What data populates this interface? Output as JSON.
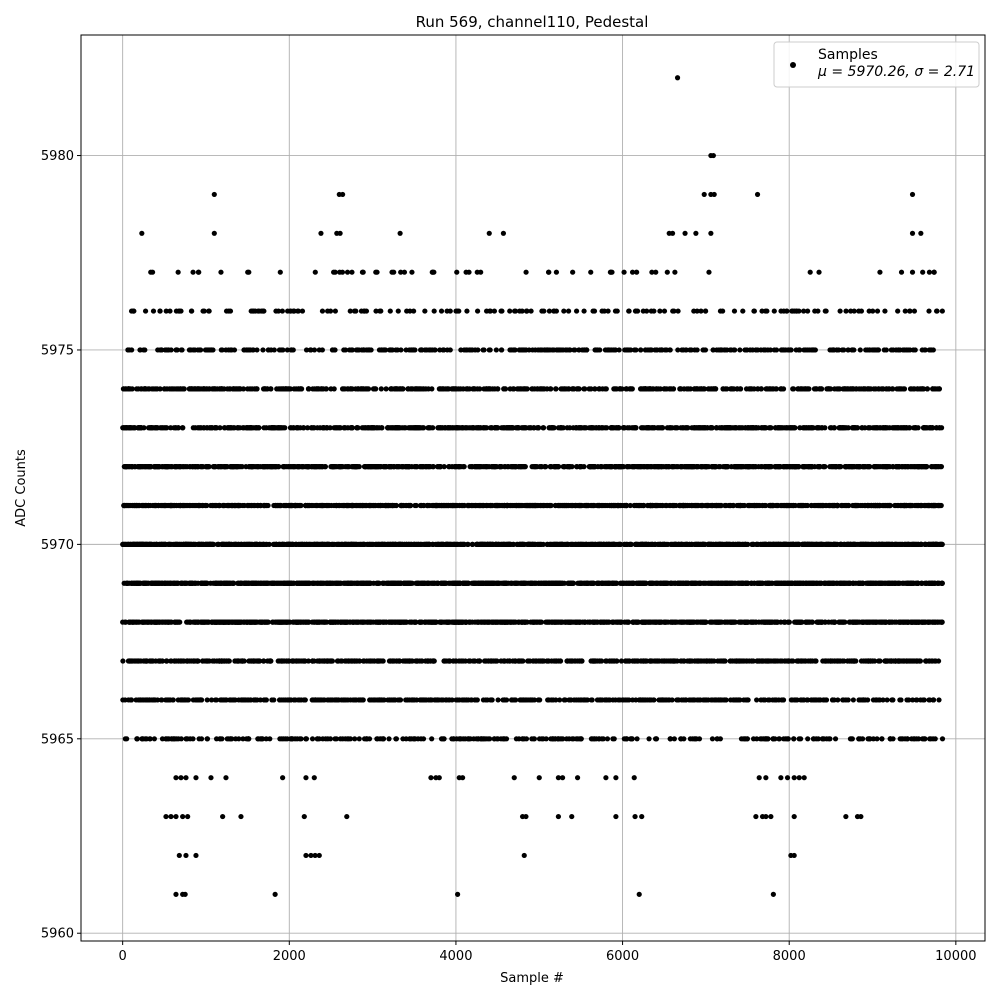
{
  "chart_data": {
    "type": "scatter",
    "title": "Run 569, channel110, Pedestal",
    "xlabel": "Sample #",
    "ylabel": "ADC Counts",
    "xlim": [
      -500,
      10350
    ],
    "ylim": [
      5959.8,
      5983.1
    ],
    "x_ticks": [
      0,
      2000,
      4000,
      6000,
      8000,
      10000
    ],
    "y_ticks": [
      5960,
      5965,
      5970,
      5975,
      5980
    ],
    "grid": true,
    "legend_position": "top-right",
    "marker_color": "#000000",
    "series": [
      {
        "name": "Samples",
        "stats_label": "μ = 5970.26, σ = 2.71",
        "x_range": [
          0,
          9840
        ],
        "points": [
          [
            6660,
            5982
          ],
          [
            7060,
            5980
          ],
          [
            7090,
            5980
          ],
          [
            1100,
            5979
          ],
          [
            2600,
            5979
          ],
          [
            2640,
            5979
          ],
          [
            6980,
            5979
          ],
          [
            7060,
            5979
          ],
          [
            7100,
            5979
          ],
          [
            7620,
            5979
          ],
          [
            9480,
            5979
          ],
          [
            230,
            5978
          ],
          [
            1100,
            5978
          ],
          [
            2380,
            5978
          ],
          [
            2570,
            5978
          ],
          [
            2610,
            5978
          ],
          [
            3330,
            5978
          ],
          [
            4400,
            5978
          ],
          [
            4570,
            5978
          ],
          [
            6560,
            5978
          ],
          [
            6600,
            5978
          ],
          [
            6750,
            5978
          ],
          [
            6880,
            5978
          ],
          [
            7060,
            5978
          ],
          [
            9480,
            5978
          ],
          [
            9580,
            5978
          ],
          [
            4820,
            5962
          ],
          [
            8020,
            5962
          ],
          [
            8060,
            5962
          ],
          [
            680,
            5962
          ],
          [
            760,
            5962
          ],
          [
            880,
            5962
          ],
          [
            2200,
            5962
          ],
          [
            2260,
            5962
          ],
          [
            2310,
            5962
          ],
          [
            2360,
            5962
          ],
          [
            640,
            5961
          ],
          [
            720,
            5961
          ],
          [
            750,
            5961
          ],
          [
            1830,
            5961
          ],
          [
            4020,
            5961
          ],
          [
            6200,
            5961
          ],
          [
            7810,
            5961
          ],
          [
            520,
            5963
          ],
          [
            580,
            5963
          ],
          [
            640,
            5963
          ],
          [
            720,
            5963
          ],
          [
            780,
            5963
          ],
          [
            1200,
            5963
          ],
          [
            1420,
            5963
          ],
          [
            2180,
            5963
          ],
          [
            2690,
            5963
          ],
          [
            4800,
            5963
          ],
          [
            4840,
            5963
          ],
          [
            5230,
            5963
          ],
          [
            5390,
            5963
          ],
          [
            5920,
            5963
          ],
          [
            6150,
            5963
          ],
          [
            6230,
            5963
          ],
          [
            7600,
            5963
          ],
          [
            7680,
            5963
          ],
          [
            7720,
            5963
          ],
          [
            7780,
            5963
          ],
          [
            8060,
            5963
          ],
          [
            8680,
            5963
          ],
          [
            8820,
            5963
          ],
          [
            8860,
            5963
          ],
          [
            640,
            5964
          ],
          [
            700,
            5964
          ],
          [
            760,
            5964
          ],
          [
            880,
            5964
          ],
          [
            1060,
            5964
          ],
          [
            1240,
            5964
          ],
          [
            1920,
            5964
          ],
          [
            2200,
            5964
          ],
          [
            2300,
            5964
          ],
          [
            3700,
            5964
          ],
          [
            3760,
            5964
          ],
          [
            3800,
            5964
          ],
          [
            4040,
            5964
          ],
          [
            4080,
            5964
          ],
          [
            4700,
            5964
          ],
          [
            5000,
            5964
          ],
          [
            5230,
            5964
          ],
          [
            5280,
            5964
          ],
          [
            5460,
            5964
          ],
          [
            5800,
            5964
          ],
          [
            5920,
            5964
          ],
          [
            6140,
            5964
          ],
          [
            7640,
            5964
          ],
          [
            7720,
            5964
          ],
          [
            7900,
            5964
          ],
          [
            7980,
            5964
          ],
          [
            8060,
            5964
          ],
          [
            8120,
            5964
          ],
          [
            8180,
            5964
          ]
        ],
        "dense_rows": [
          {
            "y": 5977,
            "count": 60
          },
          {
            "y": 5976,
            "count": 170
          },
          {
            "y": 5975,
            "count": 380
          },
          {
            "y": 5974,
            "count": 560
          },
          {
            "y": 5973,
            "count": 700
          },
          {
            "y": 5972,
            "count": 900
          },
          {
            "y": 5971,
            "count": 1000
          },
          {
            "y": 5970,
            "count": 1300
          },
          {
            "y": 5969,
            "count": 1200
          },
          {
            "y": 5968,
            "count": 950
          },
          {
            "y": 5967,
            "count": 700
          },
          {
            "y": 5966,
            "count": 520
          },
          {
            "y": 5965,
            "count": 320
          }
        ]
      }
    ]
  }
}
